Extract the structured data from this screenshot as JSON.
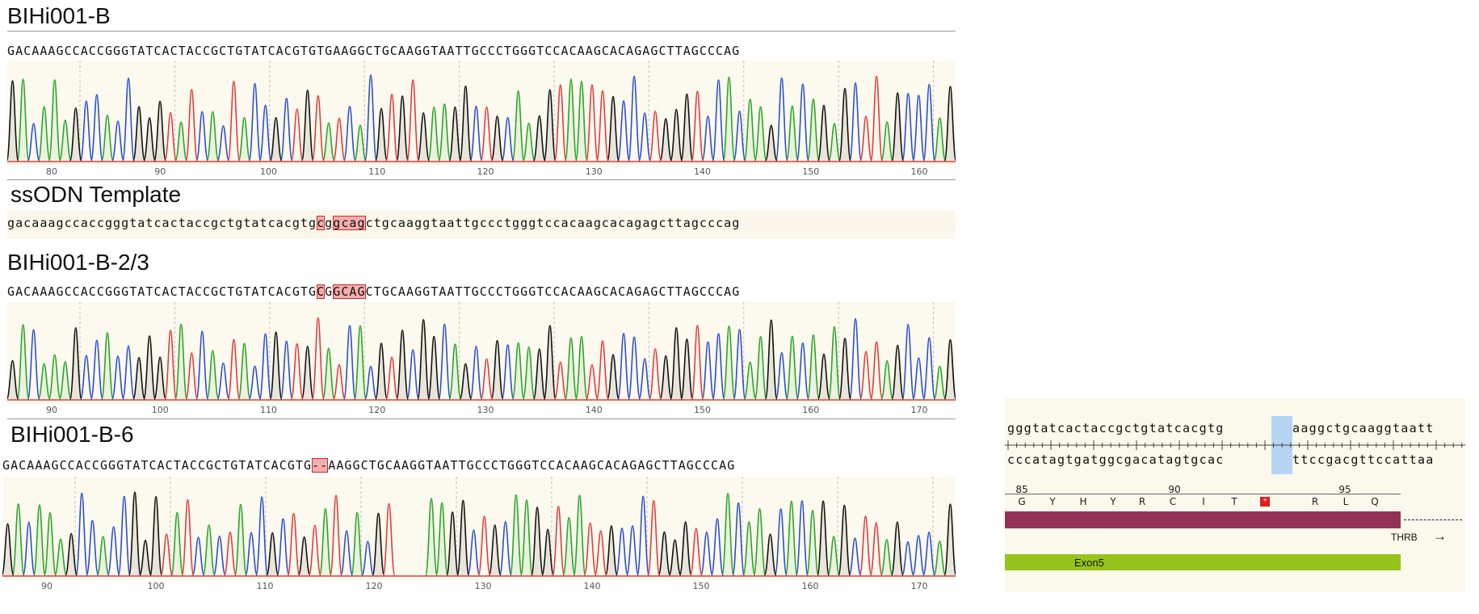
{
  "panels": [
    {
      "title": "BIHi001-B",
      "sequence": "GACAAAGCCACCGGGTATCACTACCGCTGTATCACGTGTGAAGGCTGCAAGGTAATTGCCCTGGGTCCACAAGCACAGAGCTTAGCCCAG",
      "highlights": [],
      "ticks": [
        "80",
        "90",
        "100",
        "110",
        "120",
        "130",
        "140",
        "150",
        "160"
      ],
      "gap": false
    },
    {
      "title": "BIHi001-B-2/3",
      "sequence": "GACAAAGCCACCGGGTATCACTACCGCTGTATCACGTGCGGCAGCTGCAAGGTAATTGCCCTGGGTCCACAAGCACAGAGCTTAGCCCAG",
      "highlights": [
        [
          38,
          38
        ],
        [
          40,
          43
        ]
      ],
      "ticks": [
        "90",
        "100",
        "110",
        "120",
        "130",
        "140",
        "150",
        "160",
        "170"
      ],
      "gap": false
    },
    {
      "title": "BIHi001-B-6",
      "sequence": "GACAAAGCCACCGGGTATCACTACCGCTGTATCACGTG--AAGGCTGCAAGGTAATTGCCCTGGGTCCACAAGCACAGAGCTTAGCCCAG",
      "highlights": [
        [
          38,
          39
        ]
      ],
      "ticks": [
        "90",
        "100",
        "110",
        "120",
        "130",
        "140",
        "150",
        "160",
        "170"
      ],
      "gap": true
    }
  ],
  "template": {
    "title": "ssODN Template",
    "sequence": "gacaaagccaccgggtatcactaccgctgtatcacgtgcggcagctgcaaggtaattgccctgggtccacaagcacagagcttagcccag",
    "highlights": [
      [
        38,
        38
      ],
      [
        40,
        43
      ]
    ]
  },
  "map": {
    "top_strand_left": "gggtatcactaccgctgtatcacgtg",
    "top_strand_right": "aaggctgcaaggtaatt",
    "bottom_strand_left": "cccatagtgatggcgacatagtgcac",
    "bottom_strand_right": "ttccgacgttccattaa",
    "positions": [
      "85",
      "90",
      "95"
    ],
    "amino_acids": [
      "G",
      "Y",
      "H",
      "Y",
      "R",
      "C",
      "I",
      "T",
      "*",
      "R",
      "L",
      "Q"
    ],
    "gene_label": "THRB",
    "gene_arrow": "→",
    "exon_label": "Exon5",
    "colors": {
      "gene": "#953059",
      "exon": "#95c51c",
      "deletion": "#b6d5f2",
      "stop": "#e41c1c"
    }
  },
  "trace_colors": {
    "A": "#2aa52a",
    "C": "#2b4fd0",
    "G": "#111111",
    "T": "#e23c3c"
  }
}
